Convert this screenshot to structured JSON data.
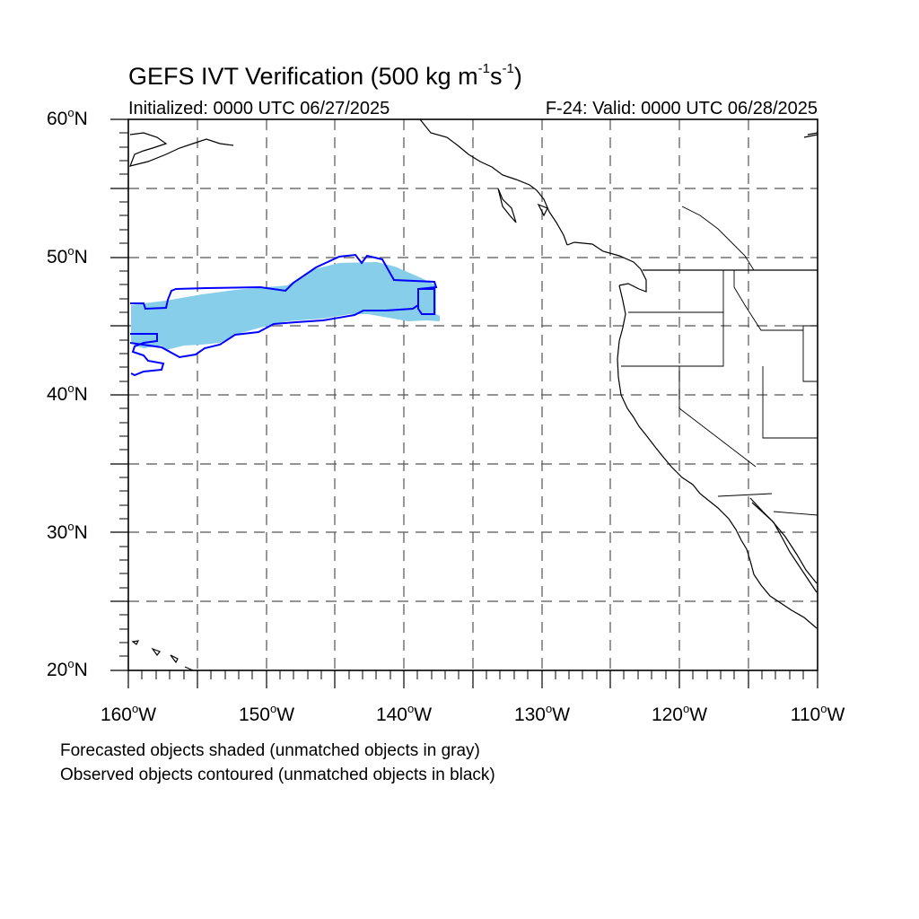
{
  "header": {
    "title_main": "GEFS IVT Verification (500 kg m",
    "title_exp1": "-1",
    "title_mid": "s",
    "title_exp2": "-1",
    "title_end": ")",
    "initialized": "Initialized: 0000 UTC 06/27/2025",
    "valid": "F-24: Valid: 0000 UTC 06/28/2025"
  },
  "axes": {
    "lat_labels": [
      {
        "value": "60",
        "hemi": "N"
      },
      {
        "value": "50",
        "hemi": "N"
      },
      {
        "value": "40",
        "hemi": "N"
      },
      {
        "value": "30",
        "hemi": "N"
      },
      {
        "value": "20",
        "hemi": "N"
      }
    ],
    "lon_labels": [
      {
        "value": "160",
        "hemi": "W"
      },
      {
        "value": "150",
        "hemi": "W"
      },
      {
        "value": "140",
        "hemi": "W"
      },
      {
        "value": "130",
        "hemi": "W"
      },
      {
        "value": "120",
        "hemi": "W"
      },
      {
        "value": "110",
        "hemi": "W"
      }
    ],
    "degree_symbol": "o",
    "lat_range": [
      20,
      60
    ],
    "lon_range": [
      -160,
      -110
    ],
    "grid_interval_deg": 5
  },
  "legend": {
    "forecast_note": "Forecasted objects shaded (unmatched objects in gray)",
    "observed_note": "Observed objects contoured (unmatched objects in black)"
  },
  "colors": {
    "forecast_fill": "#87ceeb",
    "observed_contour": "#0000ff",
    "coastline": "#000000",
    "grid": "#555555"
  }
}
